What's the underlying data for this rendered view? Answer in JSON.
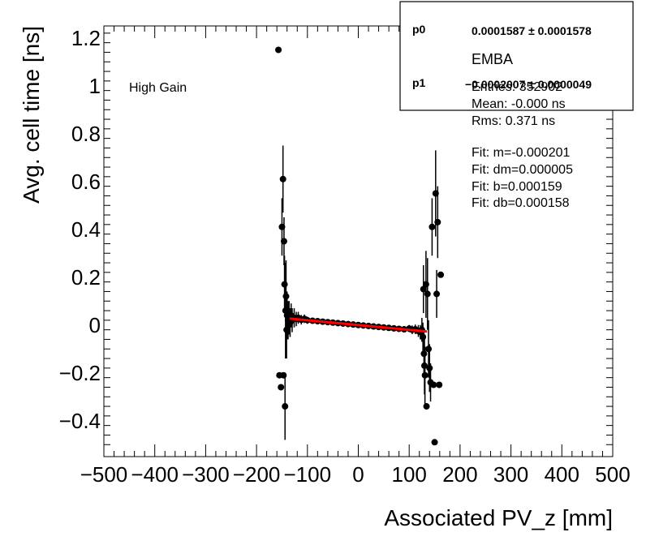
{
  "chart_data": {
    "type": "scatter",
    "xlabel": "Associated PV_z [mm]",
    "ylabel": "Avg. cell time [ns]",
    "xlim": [
      -500,
      500
    ],
    "ylim": [
      -0.55,
      1.25
    ],
    "xticks": [
      -500,
      -400,
      -300,
      -200,
      -100,
      0,
      100,
      200,
      300,
      400,
      500
    ],
    "xtick_labels": [
      "−500",
      "−400",
      "−300",
      "−200",
      "−100",
      "0",
      "100",
      "200",
      "300",
      "400",
      "500"
    ],
    "yticks": [
      -0.4,
      -0.2,
      0,
      0.2,
      0.4,
      0.6,
      0.8,
      1,
      1.2
    ],
    "ytick_labels": [
      "−0.4",
      "−0.2",
      "0",
      "0.2",
      "0.4",
      "0.6",
      "0.8",
      "1",
      "1.2"
    ],
    "annotation": "High Gain",
    "grid": false,
    "series": [
      {
        "type": "errorbar-scatter",
        "points": [
          {
            "x": -157,
            "y": 1.15,
            "err": 0.0
          },
          {
            "x": -155,
            "y": -0.21,
            "err": 0.0
          },
          {
            "x": -152,
            "y": -0.26,
            "err": 0.0
          },
          {
            "x": -150,
            "y": 0.41,
            "err": 0.12
          },
          {
            "x": -148,
            "y": 0.61,
            "err": 0.14
          },
          {
            "x": -147,
            "y": -0.21,
            "err": 0.0
          },
          {
            "x": -146,
            "y": 0.35,
            "err": 0.1
          },
          {
            "x": -145,
            "y": 0.17,
            "err": 0.12
          },
          {
            "x": -144,
            "y": -0.34,
            "err": 0.14
          },
          {
            "x": -143,
            "y": 0.06,
            "err": 0.2
          },
          {
            "x": -142,
            "y": 0.12,
            "err": 0.15
          },
          {
            "x": -141,
            "y": -0.02,
            "err": 0.12
          },
          {
            "x": -140,
            "y": 0.04,
            "err": 0.1
          },
          {
            "x": -138,
            "y": 0.02,
            "err": 0.08
          },
          {
            "x": -136,
            "y": 0.03,
            "err": 0.07
          },
          {
            "x": -134,
            "y": 0.01,
            "err": 0.06
          },
          {
            "x": -132,
            "y": 0.04,
            "err": 0.05
          },
          {
            "x": -130,
            "y": 0.02,
            "err": 0.05
          },
          {
            "x": -126,
            "y": 0.03,
            "err": 0.04
          },
          {
            "x": -122,
            "y": 0.025,
            "err": 0.03
          },
          {
            "x": -118,
            "y": 0.03,
            "err": 0.025
          },
          {
            "x": -112,
            "y": 0.022,
            "err": 0.02
          },
          {
            "x": -106,
            "y": 0.026,
            "err": 0.018
          },
          {
            "x": -100,
            "y": 0.02,
            "err": 0.015
          },
          {
            "x": -90,
            "y": 0.018,
            "err": 0.012
          },
          {
            "x": -80,
            "y": 0.016,
            "err": 0.01
          },
          {
            "x": -70,
            "y": 0.014,
            "err": 0.008
          },
          {
            "x": -60,
            "y": 0.012,
            "err": 0.006
          },
          {
            "x": -50,
            "y": 0.01,
            "err": 0.006
          },
          {
            "x": -40,
            "y": 0.008,
            "err": 0.005
          },
          {
            "x": -30,
            "y": 0.006,
            "err": 0.005
          },
          {
            "x": -20,
            "y": 0.004,
            "err": 0.005
          },
          {
            "x": -10,
            "y": 0.002,
            "err": 0.005
          },
          {
            "x": 0,
            "y": 0.0,
            "err": 0.005
          },
          {
            "x": 10,
            "y": -0.002,
            "err": 0.005
          },
          {
            "x": 20,
            "y": -0.004,
            "err": 0.005
          },
          {
            "x": 30,
            "y": -0.006,
            "err": 0.005
          },
          {
            "x": 40,
            "y": -0.008,
            "err": 0.006
          },
          {
            "x": 50,
            "y": -0.01,
            "err": 0.006
          },
          {
            "x": 60,
            "y": -0.012,
            "err": 0.007
          },
          {
            "x": 70,
            "y": -0.014,
            "err": 0.008
          },
          {
            "x": 80,
            "y": -0.016,
            "err": 0.01
          },
          {
            "x": 90,
            "y": -0.018,
            "err": 0.012
          },
          {
            "x": 100,
            "y": -0.015,
            "err": 0.015
          },
          {
            "x": 106,
            "y": -0.02,
            "err": 0.018
          },
          {
            "x": 112,
            "y": -0.018,
            "err": 0.02
          },
          {
            "x": 118,
            "y": -0.025,
            "err": 0.025
          },
          {
            "x": 122,
            "y": -0.03,
            "err": 0.03
          },
          {
            "x": 125,
            "y": -0.02,
            "err": 0.05
          },
          {
            "x": 127,
            "y": -0.05,
            "err": 0.06
          },
          {
            "x": 128,
            "y": 0.15,
            "err": 0.1
          },
          {
            "x": 129,
            "y": -0.12,
            "err": 0.1
          },
          {
            "x": 130,
            "y": -0.17,
            "err": 0.12
          },
          {
            "x": 131,
            "y": -0.21,
            "err": 0.12
          },
          {
            "x": 133,
            "y": 0.17,
            "err": 0.14
          },
          {
            "x": 134,
            "y": -0.34,
            "err": 0.0
          },
          {
            "x": 136,
            "y": 0.13,
            "err": 0.15
          },
          {
            "x": 138,
            "y": -0.1,
            "err": 0.12
          },
          {
            "x": 140,
            "y": -0.18,
            "err": 0.1
          },
          {
            "x": 142,
            "y": -0.24,
            "err": 0.08
          },
          {
            "x": 145,
            "y": 0.41,
            "err": 0.12
          },
          {
            "x": 148,
            "y": -0.25,
            "err": 0.0
          },
          {
            "x": 150,
            "y": -0.49,
            "err": 0.0
          },
          {
            "x": 152,
            "y": 0.55,
            "err": 0.18
          },
          {
            "x": 154,
            "y": 0.13,
            "err": 0.1
          },
          {
            "x": 156,
            "y": 0.43,
            "err": 0.15
          },
          {
            "x": 159,
            "y": -0.25,
            "err": 0.0
          },
          {
            "x": 162,
            "y": 0.21,
            "err": 0.0
          }
        ]
      }
    ],
    "fit_line": {
      "x": [
        -135,
        135
      ],
      "y": [
        0.027,
        -0.027
      ],
      "color": "#ff0000"
    },
    "stats_box": {
      "title": "EMBA",
      "fit_params": [
        {
          "name": "p0",
          "value": "0.0001587 ± 0.0001578"
        },
        {
          "name": "p1",
          "value": "−0.0002007 ± 0.0000049"
        }
      ],
      "entries": "Entries: 352902",
      "mean": "Mean: -0.000 ns",
      "rms": "Rms: 0.371 ns",
      "fit_lines": [
        "Fit: m=-0.000201",
        "Fit: dm=0.000005",
        "Fit: b=0.000159",
        "Fit: db=0.000158"
      ]
    }
  }
}
